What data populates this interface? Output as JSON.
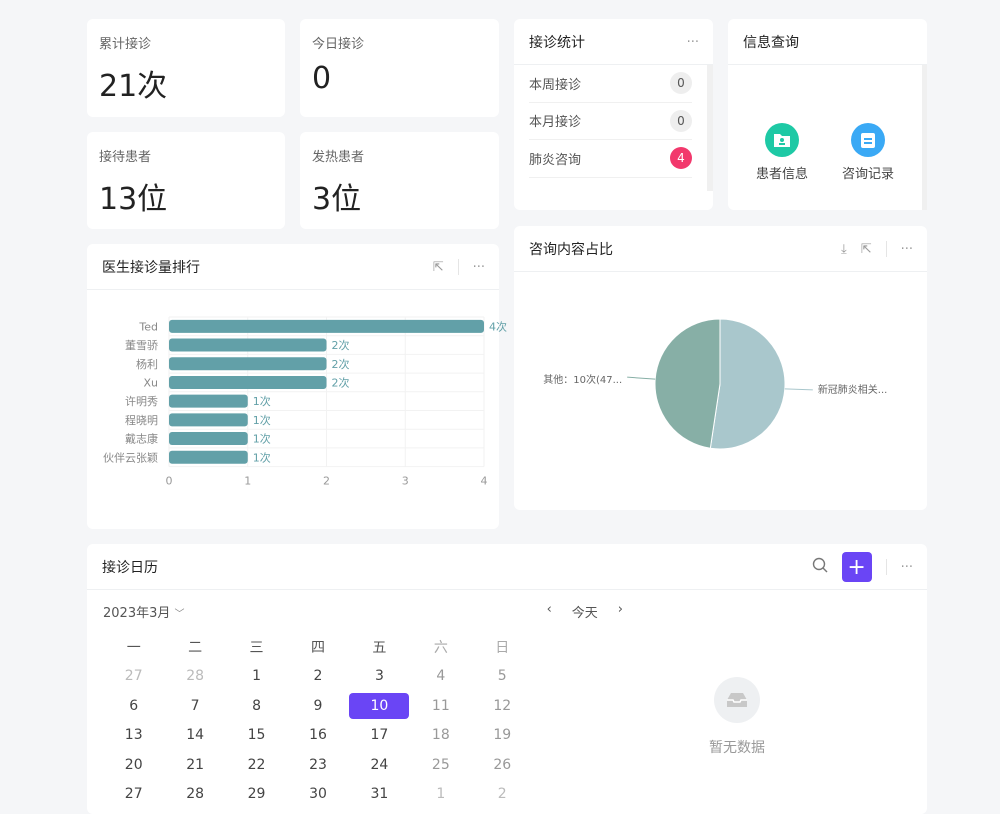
{
  "stats": [
    {
      "label": "累计接诊",
      "value": "21次"
    },
    {
      "label": "今日接诊",
      "value": "0"
    },
    {
      "label": "接待患者",
      "value": "13位"
    },
    {
      "label": "发热患者",
      "value": "3位"
    }
  ],
  "visit_stats": {
    "title": "接诊统计",
    "items": [
      {
        "label": "本周接诊",
        "count": "0"
      },
      {
        "label": "本月接诊",
        "count": "0"
      },
      {
        "label": "肺炎咨询",
        "count": "4"
      }
    ]
  },
  "info_query": {
    "title": "信息查询",
    "items": [
      {
        "label": "患者信息",
        "icon": "patient-folder-icon",
        "color": "#1ec9a5"
      },
      {
        "label": "咨询记录",
        "icon": "record-calendar-icon",
        "color": "#3aa9f5"
      }
    ]
  },
  "chart_data": [
    {
      "type": "bar",
      "title": "医生接诊量排行",
      "categories": [
        "Ted",
        "董雪骄",
        "杨利",
        "Xu",
        "许明秀",
        "程晓明",
        "戴志康",
        "伙伴云张颖"
      ],
      "values": [
        4,
        2,
        2,
        2,
        1,
        1,
        1,
        1
      ],
      "data_labels": [
        "4次",
        "2次",
        "2次",
        "2次",
        "1次",
        "1次",
        "1次",
        "1次"
      ],
      "xlim": [
        0,
        4
      ],
      "xticks": [
        "0",
        "1",
        "2",
        "3",
        "4"
      ],
      "grid": true,
      "color": "#62a0a8"
    },
    {
      "type": "pie",
      "title": "咨询内容占比",
      "slices": [
        {
          "label": "新冠肺炎相关...",
          "value": 11,
          "color": "#a9c7cc"
        },
        {
          "label": "其他：10次(47...",
          "value": 10,
          "color": "#87afa6"
        }
      ]
    }
  ],
  "calendar": {
    "title": "接诊日历",
    "month": "2023年3月",
    "today": "今天",
    "weekdays": [
      "一",
      "二",
      "三",
      "四",
      "五",
      "六",
      "日"
    ],
    "weeks": [
      [
        "27",
        "28",
        "1",
        "2",
        "3",
        "4",
        "5"
      ],
      [
        "6",
        "7",
        "8",
        "9",
        "10",
        "11",
        "12"
      ],
      [
        "13",
        "14",
        "15",
        "16",
        "17",
        "18",
        "19"
      ],
      [
        "20",
        "21",
        "22",
        "23",
        "24",
        "25",
        "26"
      ],
      [
        "27",
        "28",
        "29",
        "30",
        "31",
        "1",
        "2"
      ]
    ],
    "selected": "10",
    "empty": "暂无数据",
    "accent": "#6a45f5"
  }
}
